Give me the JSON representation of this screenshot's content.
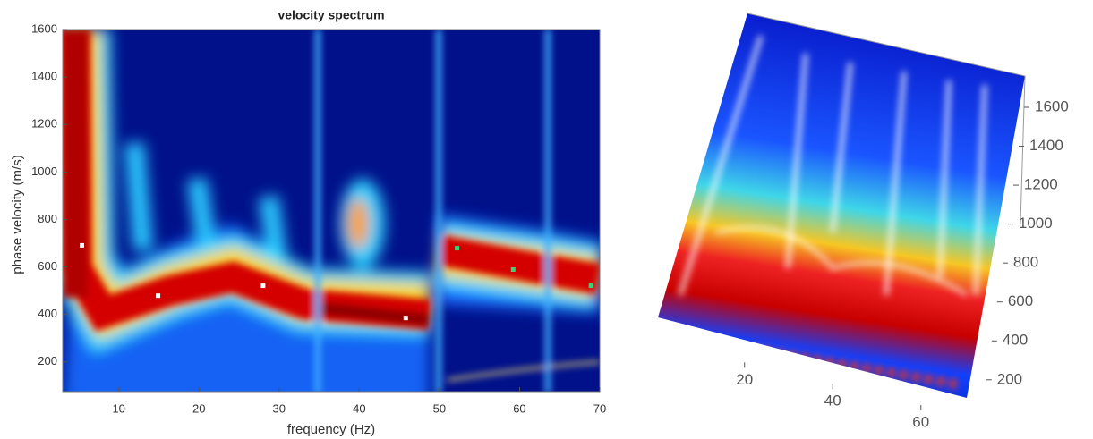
{
  "chart_data": [
    {
      "type": "scatter",
      "title": "velocity spectrum",
      "x_label": "frequency (Hz)",
      "y_label": "phase velocity (m/s)",
      "xlim": [
        3,
        70
      ],
      "ylim": [
        75,
        1600
      ],
      "xticks": [
        10,
        20,
        30,
        40,
        50,
        60,
        70
      ],
      "yticks": [
        200,
        400,
        600,
        800,
        1000,
        1200,
        1400,
        1600
      ],
      "series": [
        {
          "color": "#ffffff",
          "x": [
            5.4,
            14.9,
            28,
            45.8
          ],
          "values": [
            691,
            479,
            521,
            385
          ]
        },
        {
          "color": "#3fd07a",
          "x": [
            52.2,
            59.2,
            68.9
          ],
          "values": [
            679,
            589,
            521
          ]
        }
      ]
    },
    {
      "type": "surface3d",
      "xlim": [
        3,
        70
      ],
      "zlim": [
        75,
        1600
      ],
      "xticks": [
        20,
        40,
        60
      ],
      "zticks": [
        200,
        400,
        600,
        800,
        1000,
        1200,
        1400,
        1600
      ]
    }
  ]
}
